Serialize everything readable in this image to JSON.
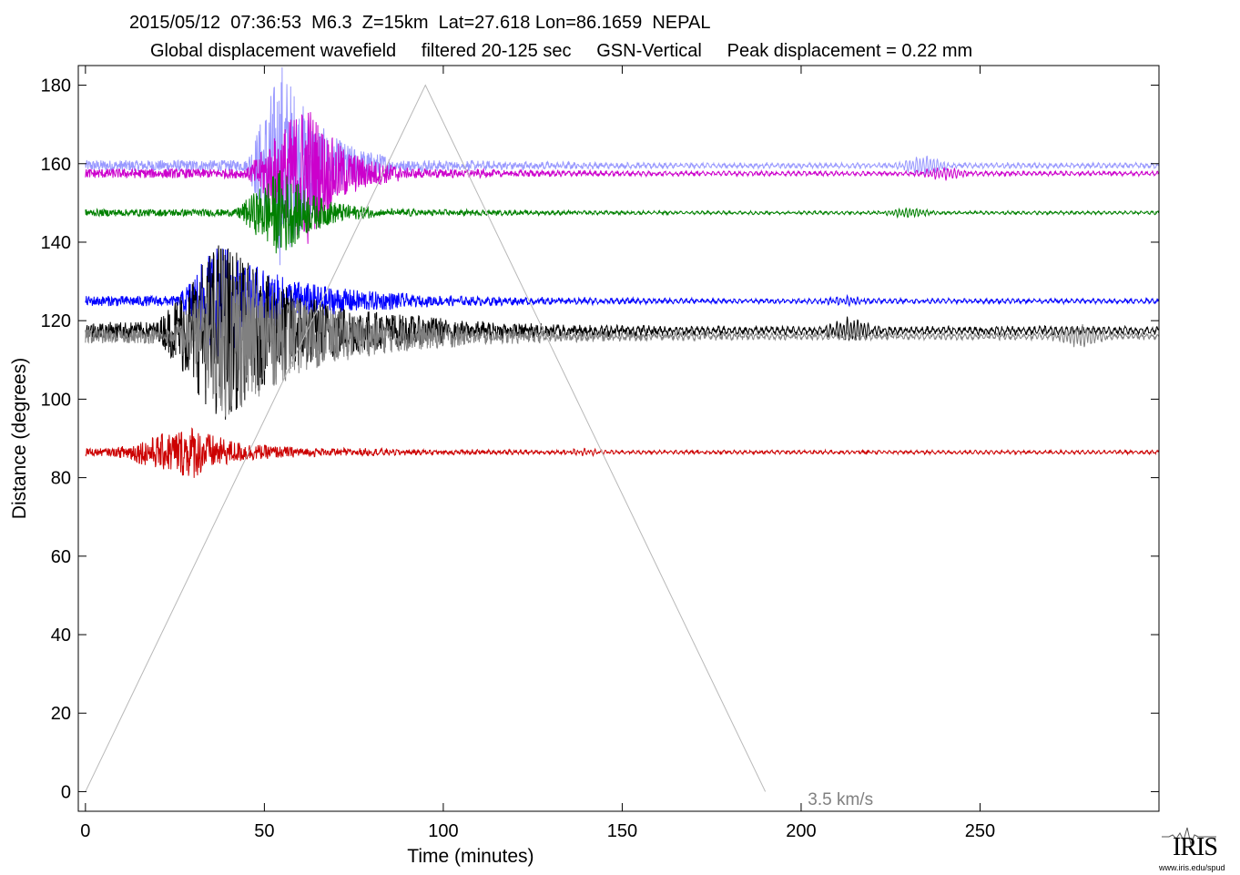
{
  "chart_data": {
    "type": "line",
    "title": "2015/05/12  07:36:53  M6.3  Z=15km  Lat=27.618 Lon=86.1659  NEPAL",
    "subtitle": "Global displacement wavefield     filtered 20-125 sec     GSN-Vertical     Peak displacement = 0.22 mm",
    "xlabel": "Time (minutes)",
    "ylabel": "Distance (degrees)",
    "xlim": [
      -2,
      300
    ],
    "ylim": [
      -5,
      185
    ],
    "xticks": [
      0,
      50,
      100,
      150,
      200,
      250
    ],
    "yticks": [
      0,
      20,
      40,
      60,
      80,
      100,
      120,
      140,
      160,
      180
    ],
    "grid": false,
    "annotations": [
      {
        "text": "3.5 km/s",
        "x": 211,
        "y": -1.5
      }
    ],
    "reference_line": {
      "name": "3.5 km/s",
      "color": "#b8b8b8",
      "points": [
        [
          0,
          0
        ],
        [
          95,
          180
        ],
        [
          190,
          0
        ]
      ]
    },
    "series": [
      {
        "color": "#9999ff",
        "distance": 159.5,
        "start": 0,
        "burst_start": 45,
        "burst_peak": 55,
        "burst_end": 85,
        "burst_amp": 26,
        "noise_amp": 1.4,
        "surface_time": 234,
        "surface_amp": 2.0
      },
      {
        "color": "#cc00cc",
        "distance": 157.5,
        "start": 0,
        "burst_start": 45,
        "burst_peak": 62,
        "burst_end": 88,
        "burst_amp": 18,
        "noise_amp": 1.2,
        "surface_time": 240,
        "surface_amp": 1.2
      },
      {
        "color": "#008000",
        "distance": 147.5,
        "start": 0,
        "burst_start": 42,
        "burst_peak": 55,
        "burst_end": 80,
        "burst_amp": 11,
        "noise_amp": 0.9,
        "surface_time": 230,
        "surface_amp": 1.0
      },
      {
        "color": "#0000ff",
        "distance": 125,
        "start": 0,
        "burst_start": 26,
        "burst_peak": 37,
        "burst_end": 90,
        "burst_amp": 14,
        "noise_amp": 1.3,
        "surface_time": 212,
        "surface_amp": 0.8
      },
      {
        "color": "#000000",
        "distance": 117.5,
        "start": 0,
        "burst_start": 20,
        "burst_peak": 38,
        "burst_end": 100,
        "burst_amp": 22,
        "noise_amp": 2.2,
        "surface_time": 214,
        "surface_amp": 2.5
      },
      {
        "color": "#808080",
        "distance": 116,
        "start": 0,
        "burst_start": 24,
        "burst_peak": 40,
        "burst_end": 105,
        "burst_amp": 20,
        "noise_amp": 1.8,
        "surface_time": 278,
        "surface_amp": 2.2
      },
      {
        "color": "#cc0000",
        "distance": 86.5,
        "start": 0,
        "burst_start": 8,
        "burst_peak": 30,
        "burst_end": 60,
        "burst_amp": 6,
        "noise_amp": 1.0,
        "surface_time": 140,
        "surface_amp": 0.5
      }
    ]
  },
  "logo": {
    "text": "IRIS",
    "url": "www.iris.edu/spud"
  }
}
